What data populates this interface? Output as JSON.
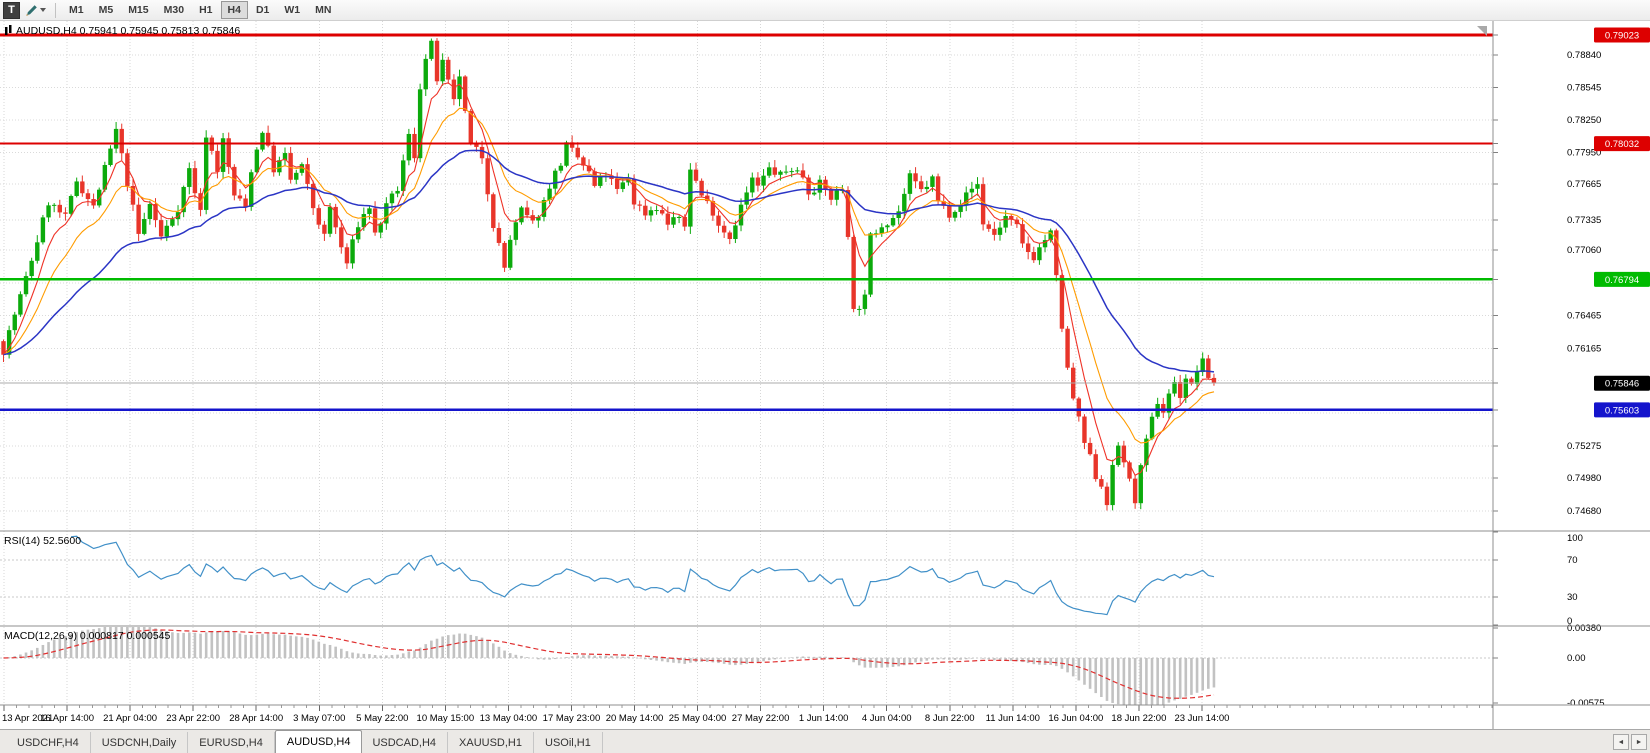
{
  "toolbar": {
    "t_button_label": "T",
    "timeframe_buttons": [
      "M1",
      "M5",
      "M15",
      "M30",
      "H1",
      "H4",
      "D1",
      "W1",
      "MN"
    ],
    "active_timeframe": "H4"
  },
  "icons": {
    "tabs_scroll_left": "◄",
    "tabs_scroll_right": "►"
  },
  "bottom_tabs": {
    "items": [
      "USDCHF,H4",
      "USDCNH,Daily",
      "EURUSD,H4",
      "AUDUSD,H4",
      "USDCAD,H4",
      "XAUUSD,H1",
      "USOil,H1"
    ],
    "active": "AUDUSD,H4"
  },
  "chart_data": {
    "type": "candlestick",
    "symbol": "AUDUSD",
    "timeframe": "H4",
    "info_line": "AUDUSD,H4  0.75941 0.75945 0.75813 0.75846",
    "ohlc": {
      "open": "0.75941",
      "high": "0.75945",
      "low": "0.75813",
      "close": "0.75846"
    },
    "price_axis": {
      "range": [
        0.74507,
        0.79151
      ],
      "labels": [
        {
          "v": 0.7884,
          "t": "0.78840"
        },
        {
          "v": 0.78545,
          "t": "0.78545"
        },
        {
          "v": 0.7825,
          "t": "0.78250"
        },
        {
          "v": 0.7795,
          "t": "0.77950"
        },
        {
          "v": 0.77665,
          "t": "0.77665"
        },
        {
          "v": 0.77335,
          "t": "0.77335"
        },
        {
          "v": 0.7706,
          "t": "0.77060"
        },
        {
          "v": 0.76465,
          "t": "0.76465"
        },
        {
          "v": 0.76165,
          "t": "0.76165"
        },
        {
          "v": 0.75275,
          "t": "0.75275"
        },
        {
          "v": 0.7498,
          "t": "0.74980"
        },
        {
          "v": 0.7468,
          "t": "0.74680"
        }
      ],
      "grid_values": [
        0.7884,
        0.78545,
        0.7825,
        0.7795,
        0.77665,
        0.77335,
        0.7706,
        0.7676,
        0.76465,
        0.76165,
        0.7587,
        0.75575,
        0.75275,
        0.7498,
        0.7468
      ]
    },
    "hlines": [
      {
        "value": 0.79023,
        "label": "0.79023",
        "color": "#dd0000",
        "width": 3
      },
      {
        "value": 0.78032,
        "label": "0.78032",
        "color": "#dd0000",
        "width": 2
      },
      {
        "value": 0.76794,
        "label": "0.76794",
        "color": "#00bb00",
        "width": 2.5
      },
      {
        "value": 0.75603,
        "label": "0.75603",
        "color": "#1414cc",
        "width": 2.5
      }
    ],
    "current_price": {
      "value": 0.75846,
      "label": "0.75846",
      "tag_color": "#000000",
      "line_color": "#ababab"
    },
    "candles": {
      "count": 216,
      "up_color": "#0caa0c",
      "down_color": "#e8352a",
      "close_keypoints": [
        [
          0,
          0.7615
        ],
        [
          4,
          0.768
        ],
        [
          8,
          0.775
        ],
        [
          11,
          0.7735
        ],
        [
          13,
          0.777
        ],
        [
          16,
          0.7745
        ],
        [
          20,
          0.7815
        ],
        [
          22,
          0.7768
        ],
        [
          24,
          0.772
        ],
        [
          26,
          0.7748
        ],
        [
          28,
          0.7718
        ],
        [
          31,
          0.7745
        ],
        [
          33,
          0.778
        ],
        [
          35,
          0.774
        ],
        [
          36,
          0.7812
        ],
        [
          38,
          0.778
        ],
        [
          39,
          0.7806
        ],
        [
          41,
          0.7756
        ],
        [
          43,
          0.7745
        ],
        [
          44,
          0.778
        ],
        [
          46,
          0.7816
        ],
        [
          48,
          0.778
        ],
        [
          50,
          0.7792
        ],
        [
          51,
          0.777
        ],
        [
          53,
          0.7782
        ],
        [
          55,
          0.7745
        ],
        [
          57,
          0.7718
        ],
        [
          58,
          0.7745
        ],
        [
          60,
          0.7708
        ],
        [
          61,
          0.7694
        ],
        [
          63,
          0.773
        ],
        [
          65,
          0.7746
        ],
        [
          66,
          0.772
        ],
        [
          68,
          0.7745
        ],
        [
          70,
          0.7762
        ],
        [
          72,
          0.781
        ],
        [
          73,
          0.7792
        ],
        [
          74,
          0.7856
        ],
        [
          75,
          0.788
        ],
        [
          76,
          0.7893
        ],
        [
          77,
          0.7862
        ],
        [
          78,
          0.7876
        ],
        [
          80,
          0.784
        ],
        [
          81,
          0.7866
        ],
        [
          82,
          0.783
        ],
        [
          83,
          0.7801
        ],
        [
          85,
          0.7792
        ],
        [
          87,
          0.773
        ],
        [
          89,
          0.769
        ],
        [
          90,
          0.7716
        ],
        [
          92,
          0.7742
        ],
        [
          94,
          0.773
        ],
        [
          96,
          0.775
        ],
        [
          97,
          0.7766
        ],
        [
          99,
          0.7786
        ],
        [
          100,
          0.7801
        ],
        [
          102,
          0.779
        ],
        [
          104,
          0.7776
        ],
        [
          105,
          0.7764
        ],
        [
          107,
          0.7776
        ],
        [
          109,
          0.776
        ],
        [
          111,
          0.7772
        ],
        [
          112,
          0.775
        ],
        [
          114,
          0.774
        ],
        [
          116,
          0.7746
        ],
        [
          118,
          0.773
        ],
        [
          119,
          0.7736
        ],
        [
          121,
          0.7728
        ],
        [
          122,
          0.7782
        ],
        [
          124,
          0.7756
        ],
        [
          126,
          0.7742
        ],
        [
          127,
          0.773
        ],
        [
          129,
          0.7718
        ],
        [
          131,
          0.7746
        ],
        [
          133,
          0.777
        ],
        [
          134,
          0.7764
        ],
        [
          136,
          0.778
        ],
        [
          138,
          0.7774
        ],
        [
          140,
          0.7781
        ],
        [
          142,
          0.7774
        ],
        [
          143,
          0.776
        ],
        [
          145,
          0.7766
        ],
        [
          147,
          0.7754
        ],
        [
          149,
          0.7762
        ],
        [
          150,
          0.7722
        ],
        [
          151,
          0.765
        ],
        [
          153,
          0.7662
        ],
        [
          154,
          0.7718
        ],
        [
          156,
          0.773
        ],
        [
          158,
          0.7736
        ],
        [
          159,
          0.7742
        ],
        [
          161,
          0.7772
        ],
        [
          163,
          0.776
        ],
        [
          165,
          0.7771
        ],
        [
          166,
          0.775
        ],
        [
          168,
          0.774
        ],
        [
          170,
          0.775
        ],
        [
          172,
          0.7762
        ],
        [
          173,
          0.7766
        ],
        [
          174,
          0.7731
        ],
        [
          176,
          0.772
        ],
        [
          178,
          0.7736
        ],
        [
          180,
          0.7726
        ],
        [
          181,
          0.771
        ],
        [
          183,
          0.77
        ],
        [
          185,
          0.7716
        ],
        [
          186,
          0.7721
        ],
        [
          187,
          0.768
        ],
        [
          188,
          0.7636
        ],
        [
          189,
          0.7596
        ],
        [
          190,
          0.7571
        ],
        [
          191,
          0.755
        ],
        [
          192,
          0.753
        ],
        [
          193,
          0.7516
        ],
        [
          194,
          0.75
        ],
        [
          195,
          0.7492
        ],
        [
          196,
          0.7477
        ],
        [
          197,
          0.7506
        ],
        [
          198,
          0.7528
        ],
        [
          199,
          0.7514
        ],
        [
          200,
          0.7494
        ],
        [
          201,
          0.7479
        ],
        [
          202,
          0.7506
        ],
        [
          203,
          0.753
        ],
        [
          204,
          0.7551
        ],
        [
          205,
          0.7568
        ],
        [
          206,
          0.7559
        ],
        [
          207,
          0.7576
        ],
        [
          208,
          0.7584
        ],
        [
          209,
          0.7574
        ],
        [
          210,
          0.759
        ],
        [
          211,
          0.7581
        ],
        [
          212,
          0.7597
        ],
        [
          213,
          0.7603
        ],
        [
          214,
          0.7591
        ],
        [
          215,
          0.75846
        ]
      ]
    },
    "moving_averages": [
      {
        "render_period": 6,
        "color": "#ef3327",
        "width": 1.1
      },
      {
        "render_period": 13,
        "color": "#ff9c00",
        "width": 1.1
      },
      {
        "render_period": 36,
        "color": "#2b35c5",
        "width": 1.5
      }
    ],
    "x_axis": {
      "labels": [
        "13 Apr 2021",
        "16 Apr 14:00",
        "21 Apr 04:00",
        "23 Apr 22:00",
        "28 Apr 14:00",
        "3 May 07:00",
        "5 May 22:00",
        "10 May 15:00",
        "13 May 04:00",
        "17 May 23:00",
        "20 May 14:00",
        "25 May 04:00",
        "27 May 22:00",
        "1 Jun 14:00",
        "4 Jun 04:00",
        "8 Jun 22:00",
        "11 Jun 14:00",
        "16 Jun 04:00",
        "18 Jun 22:00",
        "23 Jun 14:00"
      ]
    },
    "rsi": {
      "title": "RSI(14) 52.5600",
      "render_period": 12,
      "color": "#4190c8",
      "range": [
        0,
        100
      ],
      "levels": [
        {
          "v": 100,
          "t": "100"
        },
        {
          "v": 70,
          "t": "70"
        },
        {
          "v": 30,
          "t": "30"
        },
        {
          "v": 0,
          "t": "0"
        }
      ]
    },
    "macd": {
      "title": "MACD(12,26,9) 0.000817 0.000545",
      "render_fast": 24,
      "render_slow": 52,
      "render_signal": 18,
      "range": [
        -0.006,
        0.00395
      ],
      "hist_color": "#c2c2c2",
      "signal_color": "#e03030",
      "axis_labels": [
        {
          "v": 0.0038,
          "t": "0.00380"
        },
        {
          "v": 0,
          "t": "0.00"
        },
        {
          "v": -0.00575,
          "t": "-0.00575"
        }
      ]
    }
  }
}
